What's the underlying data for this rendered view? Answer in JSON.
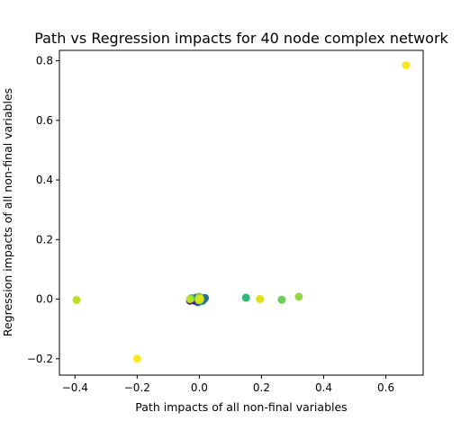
{
  "chart_data": {
    "type": "scatter",
    "title": "Path vs Regression impacts for 40 node complex network",
    "xlabel": "Path impacts of all non-final variables",
    "ylabel": "Regression impacts of all non-final variables",
    "xlim": [
      -0.45,
      0.72
    ],
    "ylim": [
      -0.255,
      0.835
    ],
    "xticks": [
      -0.4,
      -0.2,
      0.0,
      0.2,
      0.4,
      0.6
    ],
    "xtick_labels": [
      "−0.4",
      "−0.2",
      "0.0",
      "0.2",
      "0.4",
      "0.6"
    ],
    "yticks": [
      -0.2,
      0.0,
      0.2,
      0.4,
      0.6,
      0.8
    ],
    "ytick_labels": [
      "−0.2",
      "0.0",
      "0.2",
      "0.4",
      "0.6",
      "0.8"
    ],
    "grid": false,
    "colormap": "viridis",
    "points": [
      {
        "x": -0.015,
        "y": -0.005,
        "color": "#3b0f70"
      },
      {
        "x": -0.01,
        "y": 0.005,
        "color": "#31688e"
      },
      {
        "x": -0.005,
        "y": -0.01,
        "color": "#443983"
      },
      {
        "x": -0.005,
        "y": 0.0,
        "color": "#482878"
      },
      {
        "x": 0.0,
        "y": -0.008,
        "color": "#2a788e"
      },
      {
        "x": 0.0,
        "y": 0.006,
        "color": "#26828e"
      },
      {
        "x": 0.005,
        "y": -0.003,
        "color": "#3e4a89"
      },
      {
        "x": 0.005,
        "y": 0.005,
        "color": "#1f9e89"
      },
      {
        "x": 0.01,
        "y": -0.006,
        "color": "#21918c"
      },
      {
        "x": 0.015,
        "y": 0.0,
        "color": "#31688e"
      },
      {
        "x": 0.018,
        "y": 0.004,
        "color": "#2c728e"
      },
      {
        "x": -0.03,
        "y": -0.005,
        "color": "#481f70"
      },
      {
        "x": -0.025,
        "y": 0.003,
        "color": "#35b779"
      },
      {
        "x": 0.002,
        "y": 0.003,
        "color": "#4ec36b"
      },
      {
        "x": 0.0,
        "y": 0.008,
        "color": "#6ece58"
      },
      {
        "x": -0.002,
        "y": -0.002,
        "color": "#90d743"
      },
      {
        "x": 0.003,
        "y": 0.0,
        "color": "#b5de2b"
      },
      {
        "x": -0.03,
        "y": 0.0,
        "color": "#b5de2b"
      },
      {
        "x": 0.0,
        "y": -0.003,
        "color": "#cae11f"
      },
      {
        "x": 0.001,
        "y": 0.002,
        "color": "#d8e219"
      },
      {
        "x": 0.15,
        "y": 0.005,
        "color": "#35b779"
      },
      {
        "x": 0.195,
        "y": 0.0,
        "color": "#dde318"
      },
      {
        "x": 0.265,
        "y": -0.002,
        "color": "#6ece58"
      },
      {
        "x": 0.32,
        "y": 0.008,
        "color": "#90d743"
      },
      {
        "x": -0.395,
        "y": -0.003,
        "color": "#bddf26"
      },
      {
        "x": -0.2,
        "y": -0.2,
        "color": "#fde725"
      },
      {
        "x": 0.665,
        "y": 0.785,
        "color": "#fde725"
      }
    ]
  }
}
